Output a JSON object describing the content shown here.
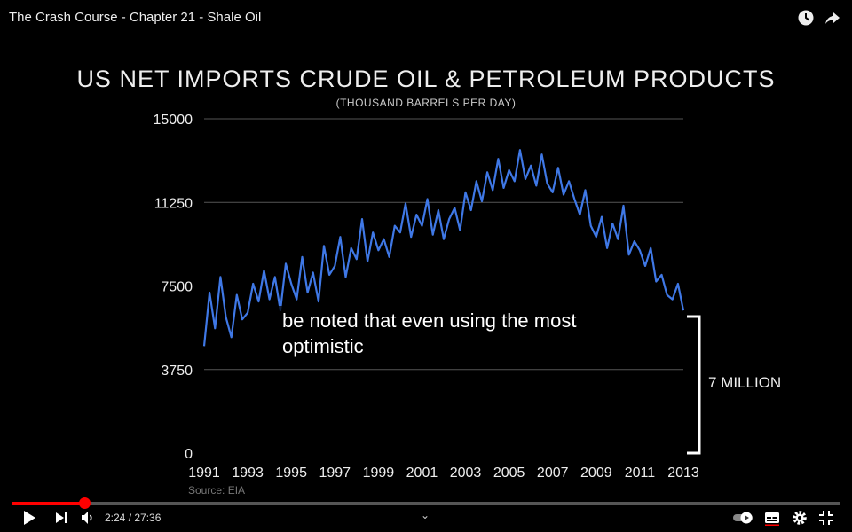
{
  "player": {
    "video_title": "The Crash Course - Chapter 21 - Shale Oil",
    "current_time": "2:24",
    "duration": "27:36",
    "time_display": "2:24 / 27:36",
    "progress_fraction": 0.087,
    "caption": "be noted that even using the most optimistic",
    "icons": [
      "watch-later-icon",
      "share-icon",
      "play-icon",
      "next-icon",
      "volume-icon",
      "chevron-up-icon",
      "autoplay-toggle-icon",
      "subtitles-icon",
      "settings-icon",
      "exit-fullscreen-icon"
    ],
    "accent_color": "#ff0000"
  },
  "chart_data": {
    "type": "line",
    "title": "US NET IMPORTS CRUDE OIL & PETROLEUM PRODUCTS",
    "subtitle": "(THOUSAND BARRELS PER DAY)",
    "source": "Source: EIA",
    "annotation": "7 MILLION",
    "ylim": [
      0,
      15000
    ],
    "y_ticks": [
      "0",
      "3750",
      "7500",
      "11250",
      "15000"
    ],
    "x_ticks": [
      "1991",
      "1993",
      "1995",
      "1997",
      "1999",
      "2001",
      "2003",
      "2005",
      "2007",
      "2009",
      "2011",
      "2013"
    ],
    "grid": true,
    "series_color": "#3f78e6",
    "series": [
      {
        "x": [
          1991.0,
          1991.25,
          1991.5,
          1991.75,
          1992.0,
          1992.25,
          1992.5,
          1992.75,
          1993.0,
          1993.25,
          1993.5,
          1993.75,
          1994.0,
          1994.25,
          1994.5,
          1994.75,
          1995.0,
          1995.25,
          1995.5,
          1995.75,
          1996.0,
          1996.25,
          1996.5,
          1996.75,
          1997.0,
          1997.25,
          1997.5,
          1997.75,
          1998.0,
          1998.25,
          1998.5,
          1998.75,
          1999.0,
          1999.25,
          1999.5,
          1999.75,
          2000.0,
          2000.25,
          2000.5,
          2000.75,
          2001.0,
          2001.25,
          2001.5,
          2001.75,
          2002.0,
          2002.25,
          2002.5,
          2002.75,
          2003.0,
          2003.25,
          2003.5,
          2003.75,
          2004.0,
          2004.25,
          2004.5,
          2004.75,
          2005.0,
          2005.25,
          2005.5,
          2005.75,
          2006.0,
          2006.25,
          2006.5,
          2006.75,
          2007.0,
          2007.25,
          2007.5,
          2007.75,
          2008.0,
          2008.25,
          2008.5,
          2008.75,
          2009.0,
          2009.25,
          2009.5,
          2009.75,
          2010.0,
          2010.25,
          2010.5,
          2010.75,
          2011.0,
          2011.25,
          2011.5,
          2011.75,
          2012.0,
          2012.25,
          2012.5,
          2012.75,
          2013.0
        ],
        "values": [
          4800,
          7200,
          5600,
          7900,
          6100,
          5200,
          7100,
          6000,
          6300,
          7600,
          6800,
          8200,
          6900,
          7900,
          6400,
          8500,
          7600,
          6900,
          8800,
          7200,
          8100,
          6800,
          9300,
          8000,
          8400,
          9700,
          7900,
          9200,
          8700,
          10500,
          8600,
          9900,
          9100,
          9600,
          8800,
          10200,
          9900,
          11200,
          9700,
          10700,
          10200,
          11400,
          9800,
          10900,
          9600,
          10500,
          11000,
          10000,
          11700,
          10900,
          12200,
          11300,
          12600,
          11800,
          13200,
          11900,
          12700,
          12200,
          13600,
          12300,
          12900,
          12000,
          13400,
          12100,
          11700,
          12800,
          11600,
          12200,
          11400,
          10700,
          11800,
          10200,
          9700,
          10600,
          9200,
          10300,
          9600,
          11100,
          8900,
          9500,
          9100,
          8400,
          9200,
          7700,
          8000,
          7100,
          6900,
          7600,
          6400
        ]
      }
    ]
  }
}
